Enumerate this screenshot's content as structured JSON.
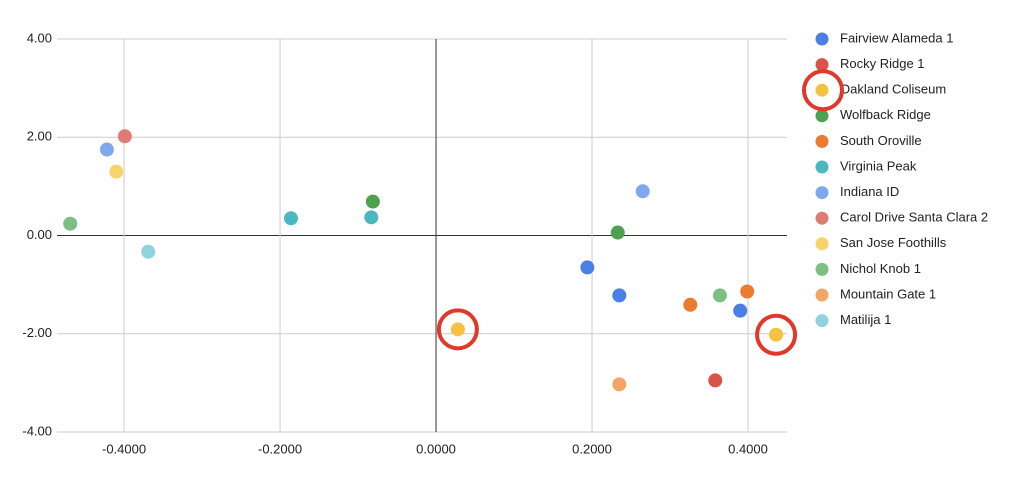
{
  "chart_data": {
    "type": "scatter",
    "xlim": [
      -0.486,
      0.45
    ],
    "ylim": [
      -4,
      4
    ],
    "xticks": [
      {
        "value": -0.4,
        "label": "-0.4000"
      },
      {
        "value": -0.2,
        "label": "-0.2000"
      },
      {
        "value": 0,
        "label": "0.0000"
      },
      {
        "value": 0.2,
        "label": "0.2000"
      },
      {
        "value": 0.4,
        "label": "0.4000"
      }
    ],
    "yticks": [
      {
        "value": -4,
        "label": "-4.00"
      },
      {
        "value": -2,
        "label": "-2.00"
      },
      {
        "value": 0,
        "label": "0.00"
      },
      {
        "value": 2,
        "label": "2.00"
      },
      {
        "value": 4,
        "label": "4.00"
      }
    ],
    "grid": true,
    "legend": "right",
    "series": [
      {
        "name": "Fairview Alameda 1",
        "color": "#4a7fe5",
        "x": [
          0.194,
          0.235,
          0.39
        ],
        "values": [
          -0.65,
          -1.22,
          -1.53
        ]
      },
      {
        "name": "Rocky Ridge 1",
        "color": "#d9534a",
        "x": [
          0.358
        ],
        "values": [
          -2.95
        ]
      },
      {
        "name": "Oakland Coliseum",
        "color": "#f4c141",
        "x": [
          0.028,
          0.436
        ],
        "values": [
          -1.91,
          -2.02
        ]
      },
      {
        "name": "Wolfback Ridge",
        "color": "#4ea24f",
        "x": [
          -0.081,
          0.233
        ],
        "values": [
          0.69,
          0.06
        ]
      },
      {
        "name": "South Oroville",
        "color": "#ec7a2f",
        "x": [
          0.326,
          0.399
        ],
        "values": [
          -1.41,
          -1.14
        ]
      },
      {
        "name": "Virginia Peak",
        "color": "#4bb8c0",
        "x": [
          -0.186,
          -0.083
        ],
        "values": [
          0.35,
          0.37
        ]
      },
      {
        "name": "Indiana ID",
        "color": "#7fa8ef",
        "x": [
          -0.422,
          0.265
        ],
        "values": [
          1.75,
          0.9
        ]
      },
      {
        "name": "Carol Drive Santa Clara 2",
        "color": "#e07b73",
        "x": [
          -0.399
        ],
        "values": [
          2.02
        ]
      },
      {
        "name": "San Jose Foothills",
        "color": "#f7d36b",
        "x": [
          -0.41
        ],
        "values": [
          1.3
        ]
      },
      {
        "name": "Nichol Knob 1",
        "color": "#7dbf82",
        "x": [
          -0.469,
          0.364
        ],
        "values": [
          0.24,
          -1.22
        ]
      },
      {
        "name": "Mountain Gate 1",
        "color": "#f2a566",
        "x": [
          0.235
        ],
        "values": [
          -3.03
        ]
      },
      {
        "name": "Matilija 1",
        "color": "#8fd3dc",
        "x": [
          -0.369
        ],
        "values": [
          -0.33
        ]
      }
    ]
  }
}
